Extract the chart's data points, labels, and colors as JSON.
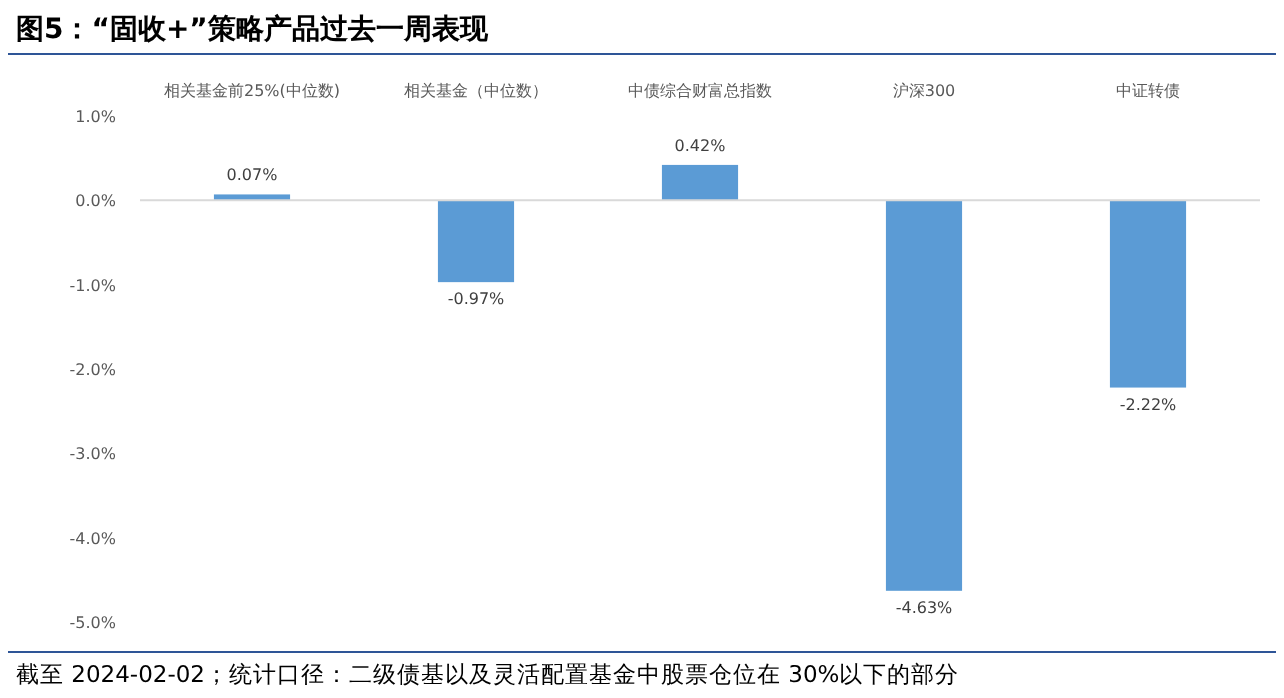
{
  "chart_data": {
    "type": "bar",
    "title": "图5：“固收+”策略产品过去一周表现",
    "categories": [
      "相关基金前25%(中位数)",
      "相关基金（中位数）",
      "中债综合财富总指数",
      "沪深300",
      "中证转债"
    ],
    "values": [
      0.07,
      -0.97,
      0.42,
      -4.63,
      -2.22
    ],
    "value_labels": [
      "0.07%",
      "-0.97%",
      "0.42%",
      "-4.63%",
      "-2.22%"
    ],
    "color": "#5b9bd5",
    "ylim": [
      -5.0,
      1.0
    ],
    "yticks": [
      {
        "value": 1.0,
        "label": "1.0%"
      },
      {
        "value": 0.0,
        "label": "0.0%"
      },
      {
        "value": -1.0,
        "label": "-1.0%"
      },
      {
        "value": -2.0,
        "label": "-2.0%"
      },
      {
        "value": -3.0,
        "label": "-3.0%"
      },
      {
        "value": -4.0,
        "label": "-4.0%"
      },
      {
        "value": -5.0,
        "label": "-5.0%"
      }
    ],
    "annotations": [
      "截至 2024-02-02；统计口径：二级债基以及灵活配置基金中股票仓位在 30%以下的部分"
    ]
  }
}
